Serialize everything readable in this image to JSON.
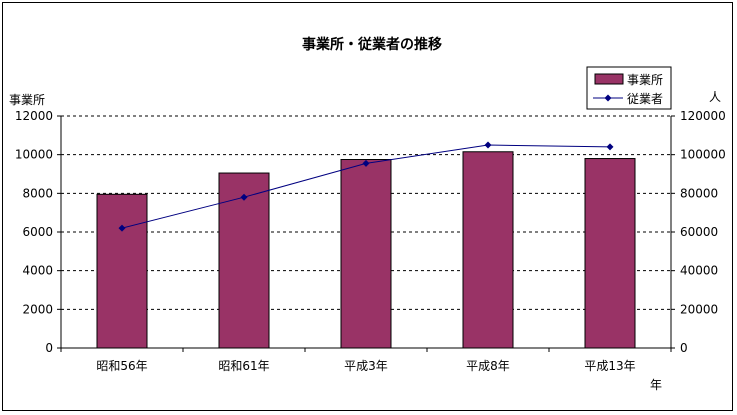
{
  "chart_data": {
    "type": "bar",
    "title": "事業所・従業者の推移",
    "xlabel": "年",
    "ylabel_left": "事業所",
    "ylabel_right": "人",
    "categories": [
      "昭和56年",
      "昭和61年",
      "平成3年",
      "平成8年",
      "平成13年"
    ],
    "series": [
      {
        "name": "事業所",
        "kind": "bar",
        "axis": "left",
        "color": "#993366",
        "values": [
          7950,
          9050,
          9750,
          10150,
          9800
        ]
      },
      {
        "name": "従業者",
        "kind": "line",
        "axis": "right",
        "color": "#000080",
        "values": [
          62000,
          78000,
          95500,
          105000,
          104000
        ]
      }
    ],
    "ylim_left": [
      0,
      12000
    ],
    "ylim_right": [
      0,
      120000
    ],
    "yticks_left": [
      0,
      2000,
      4000,
      6000,
      8000,
      10000,
      12000
    ],
    "yticks_right": [
      0,
      20000,
      40000,
      60000,
      80000,
      100000,
      120000
    ],
    "grid": "horizontal-dashed",
    "legend_position": "top-right"
  }
}
